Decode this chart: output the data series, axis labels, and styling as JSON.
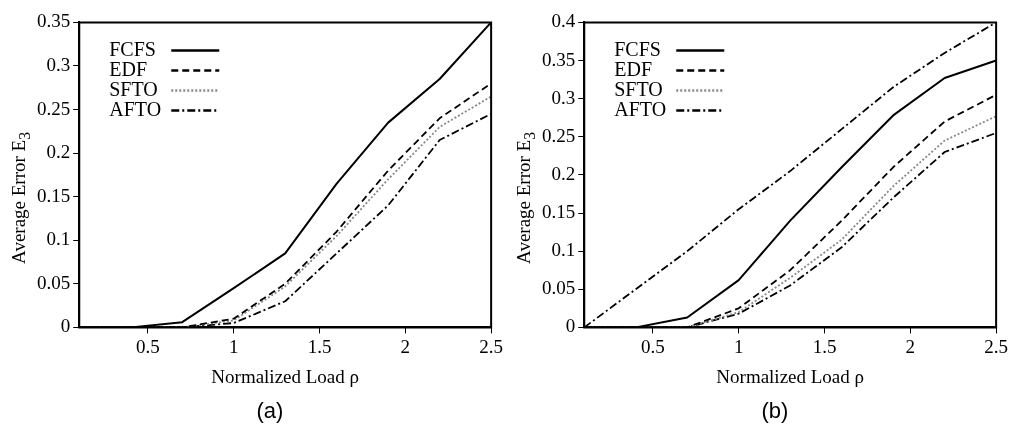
{
  "chart_data": [
    {
      "type": "line",
      "xlabel": "Normalized Load ρ",
      "ylabel": "Average Error E$_{3}$",
      "annotations": [
        "(a)"
      ],
      "x": [
        0.1,
        0.4,
        0.7,
        1.0,
        1.3,
        1.6,
        1.9,
        2.2,
        2.5
      ],
      "xlim": [
        0.1,
        2.5
      ],
      "xticks": [
        0.5,
        1,
        1.5,
        2,
        2.5
      ],
      "ylim": [
        0,
        0.35
      ],
      "yticks": [
        0,
        0.05,
        0.1,
        0.15,
        0.2,
        0.25,
        0.3,
        0.35
      ],
      "grid": false,
      "legend": "top left",
      "marker": "none",
      "series": [
        {
          "name": "FCFS",
          "color": "#000000",
          "line_style": "solid",
          "values": [
            0,
            0,
            0.006,
            0.045,
            0.085,
            0.165,
            0.235,
            0.285,
            0.35
          ]
        },
        {
          "name": "EDF",
          "color": "#000000",
          "line_style": "dashed",
          "values": [
            0,
            0,
            0,
            0.01,
            0.05,
            0.11,
            0.18,
            0.24,
            0.28
          ]
        },
        {
          "name": "SFTO",
          "color": "#888888",
          "line_style": "dotted",
          "values": [
            0,
            0,
            0,
            0.008,
            0.047,
            0.105,
            0.17,
            0.23,
            0.265
          ]
        },
        {
          "name": "AFTO",
          "color": "#000000",
          "line_style": "dashdot",
          "values": [
            0,
            0,
            0,
            0.005,
            0.03,
            0.085,
            0.14,
            0.215,
            0.245
          ]
        }
      ]
    },
    {
      "type": "line",
      "xlabel": "Normalized Load ρ",
      "ylabel": "Average Error E$_{3}$",
      "annotations": [
        "(b)"
      ],
      "x": [
        0.1,
        0.4,
        0.7,
        1.0,
        1.3,
        1.6,
        1.9,
        2.2,
        2.5
      ],
      "xlim": [
        0.1,
        2.5
      ],
      "xticks": [
        0.5,
        1,
        1.5,
        2,
        2.5
      ],
      "ylim": [
        0,
        0.4
      ],
      "yticks": [
        0,
        0.05,
        0.1,
        0.15,
        0.2,
        0.25,
        0.3,
        0.35,
        0.4
      ],
      "grid": false,
      "legend": "top left",
      "marker": "none",
      "series": [
        {
          "name": "FCFS",
          "color": "#000000",
          "line_style": "solid",
          "values": [
            0,
            0,
            0.013,
            0.062,
            0.14,
            0.21,
            0.278,
            0.327,
            0.35
          ]
        },
        {
          "name": "EDF",
          "color": "#000000",
          "line_style": "dashed",
          "values": [
            0,
            0,
            0,
            0.025,
            0.075,
            0.14,
            0.21,
            0.27,
            0.305
          ]
        },
        {
          "name": "SFTO",
          "color": "#888888",
          "line_style": "dotted",
          "values": [
            0,
            0,
            0,
            0.02,
            0.065,
            0.115,
            0.185,
            0.245,
            0.277
          ]
        },
        {
          "name": "AFTO",
          "color": "#000000",
          "line_style": "dashdot",
          "values": [
            0,
            0.05,
            0.1,
            0.155,
            0.205,
            0.26,
            0.315,
            0.36,
            0.4
          ]
        },
        {
          "color": "#000000",
          "line_style": "dashdot",
          "values": [
            0,
            0,
            0,
            0.018,
            0.055,
            0.105,
            0.17,
            0.23,
            0.255
          ]
        }
      ]
    }
  ]
}
